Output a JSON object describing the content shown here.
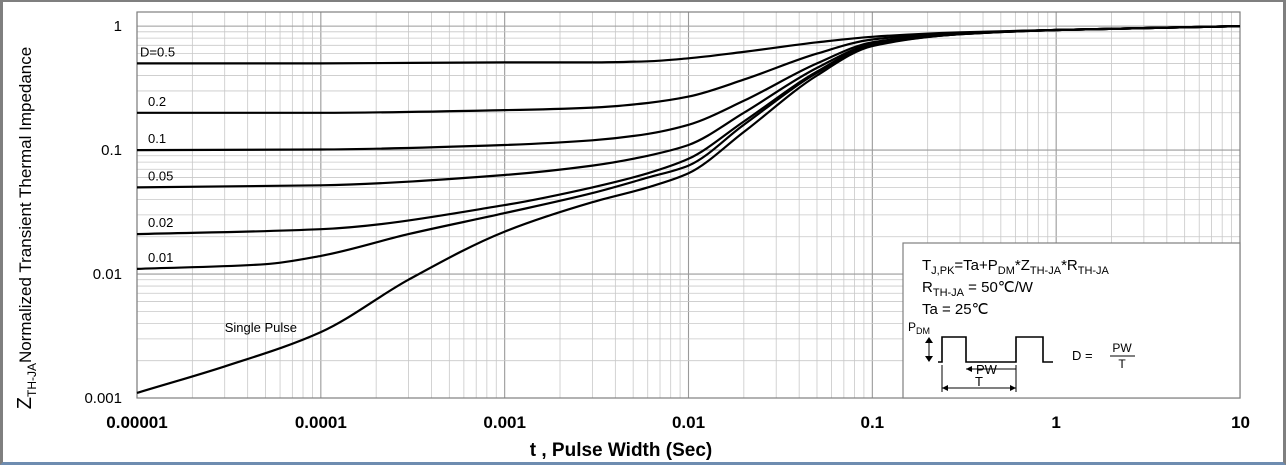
{
  "chart_data": {
    "type": "line",
    "xlabel": "t , Pulse Width (Sec)",
    "ylabel_sub": "TH-JA",
    "ylabel_main": "Normalized Transient Thermal Impedance",
    "x_scale": "log",
    "y_scale": "log",
    "xlim": [
      1e-05,
      10
    ],
    "ylim": [
      0.001,
      1.3
    ],
    "grid": true,
    "x_ticks": [
      {
        "value": 1e-05,
        "label": "0.00001"
      },
      {
        "value": 0.0001,
        "label": "0.0001"
      },
      {
        "value": 0.001,
        "label": "0.001"
      },
      {
        "value": 0.01,
        "label": "0.01"
      },
      {
        "value": 0.1,
        "label": "0.1"
      },
      {
        "value": 1,
        "label": "1"
      },
      {
        "value": 10,
        "label": "10"
      }
    ],
    "y_ticks": [
      {
        "value": 0.001,
        "label": "0.001"
      },
      {
        "value": 0.01,
        "label": "0.01"
      },
      {
        "value": 0.1,
        "label": "0.1"
      },
      {
        "value": 1,
        "label": "1"
      }
    ],
    "series": [
      {
        "name": "D=0.5",
        "x": [
          1e-05,
          0.0001,
          0.001,
          0.003,
          0.006,
          0.01,
          0.02,
          0.05,
          0.1,
          0.3,
          1,
          10
        ],
        "y": [
          0.5,
          0.5,
          0.51,
          0.51,
          0.52,
          0.55,
          0.62,
          0.74,
          0.82,
          0.89,
          0.93,
          1.0
        ]
      },
      {
        "name": "0.2",
        "x": [
          1e-05,
          0.0001,
          0.001,
          0.003,
          0.006,
          0.01,
          0.02,
          0.05,
          0.1,
          0.3,
          1,
          10
        ],
        "y": [
          0.2,
          0.2,
          0.21,
          0.22,
          0.24,
          0.27,
          0.37,
          0.6,
          0.78,
          0.88,
          0.93,
          1.0
        ]
      },
      {
        "name": "0.1",
        "x": [
          1e-05,
          0.0001,
          0.001,
          0.003,
          0.006,
          0.01,
          0.02,
          0.05,
          0.1,
          0.3,
          1,
          10
        ],
        "y": [
          0.1,
          0.101,
          0.11,
          0.12,
          0.135,
          0.16,
          0.25,
          0.5,
          0.74,
          0.87,
          0.93,
          1.0
        ]
      },
      {
        "name": "0.05",
        "x": [
          1e-05,
          0.0001,
          0.001,
          0.003,
          0.006,
          0.01,
          0.02,
          0.05,
          0.1,
          0.3,
          1,
          10
        ],
        "y": [
          0.05,
          0.052,
          0.063,
          0.075,
          0.09,
          0.11,
          0.2,
          0.46,
          0.72,
          0.87,
          0.93,
          1.0
        ]
      },
      {
        "name": "0.02",
        "x": [
          1e-05,
          0.0001,
          0.001,
          0.003,
          0.006,
          0.01,
          0.02,
          0.05,
          0.1,
          0.3,
          1,
          10
        ],
        "y": [
          0.021,
          0.023,
          0.036,
          0.05,
          0.065,
          0.085,
          0.17,
          0.43,
          0.71,
          0.86,
          0.93,
          1.0
        ]
      },
      {
        "name": "0.01",
        "x": [
          1e-05,
          5e-05,
          0.0001,
          0.0003,
          0.001,
          0.003,
          0.006,
          0.01,
          0.02,
          0.05,
          0.1,
          0.3,
          1,
          10
        ],
        "y": [
          0.011,
          0.012,
          0.014,
          0.021,
          0.031,
          0.045,
          0.06,
          0.075,
          0.16,
          0.42,
          0.7,
          0.86,
          0.93,
          1.0
        ]
      },
      {
        "name": "Single Pulse",
        "x": [
          1e-05,
          3e-05,
          0.0001,
          0.0003,
          0.001,
          0.003,
          0.006,
          0.01,
          0.02,
          0.05,
          0.1,
          0.3,
          1,
          10
        ],
        "y": [
          0.0011,
          0.0018,
          0.0034,
          0.009,
          0.022,
          0.038,
          0.05,
          0.065,
          0.14,
          0.4,
          0.69,
          0.86,
          0.93,
          1.0
        ]
      }
    ],
    "legend_box": {
      "placement": "bottom-right",
      "eq1": {
        "t": "T",
        "t_sub": "J,PK",
        "a": "=Ta+P",
        "a_sub": "DM",
        "b": "*Z",
        "b_sub": "TH-JA",
        "c": "*R",
        "c_sub": "TH-JA"
      },
      "eq2": {
        "r": "R",
        "r_sub": "TH-JA",
        "rest": " = 50℃/W"
      },
      "eq3": "Ta = 25℃",
      "pdm": "P",
      "pdm_sub": "DM",
      "pw": "PW",
      "t": "T",
      "duty": "D = ",
      "frac_num": "PW",
      "frac_den": "T"
    }
  }
}
